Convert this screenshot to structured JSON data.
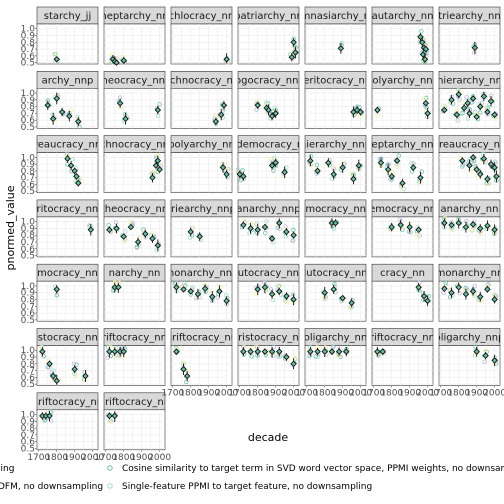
{
  "chart_data": {
    "type": "scatter",
    "xlabel": "decade",
    "ylabel": "pnormed_value",
    "xlim": [
      1690,
      2030
    ],
    "ylim": [
      0.48,
      1.07
    ],
    "xticks": [
      "1700",
      "1800",
      "1900",
      "2000"
    ],
    "yticks": [
      "0.5",
      "0.6",
      "0.7",
      "0.8",
      "0.9",
      "1.0"
    ],
    "colors": {
      "estimate": "#111111",
      "svd": "#67c2a5",
      "ppmi": "#9fd8cb",
      "other_a": "#b9b9dc",
      "other_b": "#f1ef9c",
      "dark_teal": "#3a7d6f"
    },
    "legend": [
      {
        "label": "ling",
        "color": "#b9b9dc"
      },
      {
        "label": "DFM, no downsampling",
        "color": "#f1ef9c"
      },
      {
        "label": "Cosine similarity to target term in SVD word vector space, PPMI weights, no downsampling",
        "color": "#67c2a5"
      },
      {
        "label": "Single-feature PPMI to target feature, no downsampling",
        "color": "#9fd8cb"
      }
    ],
    "panels": [
      {
        "title": "starchy_jj",
        "x": [
          1800
        ],
        "y": [
          0.55
        ]
      },
      {
        "title": "heptarchy_nn",
        "x": [
          1740,
          1750,
          1760,
          1800
        ],
        "y": [
          0.55,
          0.52,
          0.5,
          0.53
        ]
      },
      {
        "title": "ochlocracy_nnp",
        "x": [
          2000
        ],
        "y": [
          0.55
        ]
      },
      {
        "title": "patriarchy_nn",
        "x": [
          2000,
          2010,
          1990
        ],
        "y": [
          0.8,
          0.65,
          0.58
        ]
      },
      {
        "title": "ymnasiarchy_nn",
        "x": [
          1890
        ],
        "y": [
          0.71
        ]
      },
      {
        "title": "autarchy_nn",
        "x": [
          1960,
          1970,
          1980,
          1990,
          1975,
          1985
        ],
        "y": [
          0.88,
          0.8,
          0.72,
          0.7,
          0.62,
          0.55
        ]
      },
      {
        "title": "triearchy_nn",
        "x": [
          1890
        ],
        "y": [
          0.72
        ]
      },
      {
        "title": "archy_nnp",
        "x": [
          1750,
          1780,
          1800,
          1830,
          1870,
          1920
        ],
        "y": [
          0.82,
          0.62,
          0.92,
          0.72,
          0.66,
          0.58
        ]
      },
      {
        "title": "theocracy_nnp",
        "x": [
          1780,
          1810,
          1990
        ],
        "y": [
          0.85,
          0.62,
          0.75
        ]
      },
      {
        "title": "echnocracy_nn",
        "x": [
          1970,
          1940,
          1985
        ],
        "y": [
          0.68,
          0.58,
          0.82
        ]
      },
      {
        "title": "logocracy_nnp",
        "x": [
          1800,
          1850,
          1860,
          1900,
          1880
        ],
        "y": [
          0.82,
          0.78,
          0.75,
          0.7,
          0.66
        ]
      },
      {
        "title": "meritocracy_nnp",
        "x": [
          1960,
          1980,
          2000
        ],
        "y": [
          0.72,
          0.75,
          0.72
        ]
      },
      {
        "title": "polyarchy_nnp",
        "x": [
          1720,
          1990,
          2000
        ],
        "y": [
          0.75,
          0.85,
          0.7
        ]
      },
      {
        "title": "hierarchy_nn",
        "x": [
          1720,
          1760,
          1790,
          1800,
          1830,
          1850,
          1860,
          1880,
          1900,
          1920,
          1940,
          1960,
          1980,
          2000
        ],
        "y": [
          0.75,
          0.9,
          0.68,
          0.98,
          0.78,
          0.85,
          0.7,
          0.92,
          0.65,
          0.8,
          0.95,
          0.72,
          0.88,
          0.68
        ]
      },
      {
        "title": "ureaucracy_nnp",
        "x": [
          1860,
          1880,
          1900,
          1910,
          1920
        ],
        "y": [
          0.98,
          0.88,
          0.8,
          0.72,
          0.62
        ]
      },
      {
        "title": "echnocracy_nnp",
        "x": [
          1960,
          1980,
          1990,
          2000
        ],
        "y": [
          0.7,
          0.88,
          0.95,
          0.82
        ]
      },
      {
        "title": "polyarchy_nn",
        "x": [
          1980,
          2000
        ],
        "y": [
          0.85,
          0.75
        ]
      },
      {
        "title": "aldemocracy_nn",
        "x": [
          1700,
          1720,
          1880,
          1900,
          1950
        ],
        "y": [
          0.75,
          0.72,
          0.88,
          0.92,
          0.78
        ]
      },
      {
        "title": "hierarchy_nnp",
        "x": [
          1720,
          1760,
          1820,
          1850,
          1900,
          1960,
          1990
        ],
        "y": [
          0.95,
          0.8,
          0.92,
          0.75,
          0.85,
          0.68,
          0.88
        ]
      },
      {
        "title": "heptarchy_nnp",
        "x": [
          1740,
          1780,
          1800,
          1830,
          1860,
          1920,
          1960
        ],
        "y": [
          0.92,
          0.82,
          0.72,
          0.95,
          0.62,
          0.85,
          0.7
        ]
      },
      {
        "title": "ureaucracy_nn",
        "x": [
          1820,
          1860,
          1880,
          1900,
          1920,
          1940,
          1960,
          1980,
          2000,
          2010
        ],
        "y": [
          0.95,
          0.88,
          1.0,
          0.82,
          0.75,
          0.98,
          0.68,
          0.9,
          0.85,
          0.72
        ]
      },
      {
        "title": "eritocracy_nnp",
        "x": [
          1990
        ],
        "y": [
          0.88
        ]
      },
      {
        "title": "theocracy_nn",
        "x": [
          1720,
          1760,
          1800,
          1840,
          1880,
          1920,
          1960,
          1990
        ],
        "y": [
          0.88,
          0.9,
          0.78,
          0.92,
          0.7,
          0.82,
          0.75,
          0.65
        ]
      },
      {
        "title": "triearchy_nnp",
        "x": [
          1800,
          1850
        ],
        "y": [
          0.85,
          0.78
        ]
      },
      {
        "title": "anarchy_nnp",
        "x": [
          1720,
          1760,
          1800,
          1840,
          1880,
          1920,
          1960,
          2000
        ],
        "y": [
          0.95,
          0.9,
          0.88,
          0.92,
          0.75,
          0.98,
          0.85,
          0.8
        ]
      },
      {
        "title": "timocracy_nnp",
        "x": [
          1840,
          1860
        ],
        "y": [
          0.98,
          0.98
        ]
      },
      {
        "title": "emocracy_nn",
        "x": [
          1800,
          1850,
          1900,
          1950
        ],
        "y": [
          0.92,
          0.95,
          0.92,
          0.88
        ]
      },
      {
        "title": "anarchy_nn",
        "x": [
          1720,
          1760,
          1800,
          1840,
          1880,
          1920,
          1960,
          2000
        ],
        "y": [
          0.98,
          0.95,
          0.98,
          0.92,
          0.96,
          0.9,
          0.94,
          0.88
        ]
      },
      {
        "title": "mocracy_nn",
        "x": [
          1800
        ],
        "y": [
          0.95
        ]
      },
      {
        "title": "narchy_nn",
        "x": [
          1750,
          1770
        ],
        "y": [
          0.98,
          0.98
        ]
      },
      {
        "title": "monarchy_nnp",
        "x": [
          1720,
          1760,
          1800,
          1840,
          1880,
          1920,
          1960,
          2000
        ],
        "y": [
          0.98,
          0.95,
          0.92,
          0.88,
          0.96,
          0.84,
          0.92,
          0.78
        ]
      },
      {
        "title": "autocracy_nnp",
        "x": [
          1800,
          1840,
          1880,
          1920,
          1960,
          2000
        ],
        "y": [
          0.95,
          0.98,
          0.88,
          0.92,
          0.85,
          0.8
        ]
      },
      {
        "title": "plutocracy_nnp",
        "x": [
          1800,
          1850,
          1900,
          1950
        ],
        "y": [
          0.9,
          0.95,
          0.82,
          0.75
        ]
      },
      {
        "title": "cracy_nn",
        "x": [
          1950,
          1980,
          2000
        ],
        "y": [
          0.98,
          0.85,
          0.78
        ]
      },
      {
        "title": "monarchy_nn",
        "x": [
          1720,
          1760,
          1800,
          1840,
          1880,
          1920,
          1960,
          2000
        ],
        "y": [
          0.96,
          0.9,
          0.98,
          0.88,
          0.92,
          0.84,
          0.95,
          0.8
        ]
      },
      {
        "title": "ristocracy_nnp",
        "x": [
          1720,
          1760,
          1780,
          1800,
          1900,
          1960
        ],
        "y": [
          0.98,
          0.8,
          0.62,
          0.55,
          0.72,
          0.62
        ]
      },
      {
        "title": "ariftocracy_nnp",
        "x": [
          1720,
          1750,
          1780,
          1800
        ],
        "y": [
          0.98,
          0.98,
          0.98,
          0.98
        ]
      },
      {
        "title": "ariftocracy_nn",
        "x": [
          1720,
          1760,
          1780
        ],
        "y": [
          0.98,
          0.72,
          0.62
        ]
      },
      {
        "title": "aristocracy_nn",
        "x": [
          1720,
          1760,
          1800,
          1840,
          1880,
          1920,
          1960,
          2000
        ],
        "y": [
          0.98,
          0.98,
          0.98,
          0.98,
          0.98,
          0.98,
          0.9,
          0.8
        ]
      },
      {
        "title": "oligarchy_nn",
        "x": [
          1720,
          1760,
          1800,
          1840,
          1880,
          1920
        ],
        "y": [
          0.98,
          0.98,
          0.98,
          0.98,
          0.98,
          0.98
        ]
      },
      {
        "title": "ariftocracy_nnp",
        "x": [
          1720,
          1750
        ],
        "y": [
          0.98,
          0.98
        ]
      },
      {
        "title": "oligarchy_nnp",
        "x": [
          1900,
          1950,
          2000
        ],
        "y": [
          0.98,
          0.92,
          0.85
        ]
      },
      {
        "title": "ariftocracy_nn",
        "x": [
          1720,
          1740,
          1760
        ],
        "y": [
          0.98,
          0.98,
          0.98
        ]
      },
      {
        "title": "ariftocracy_nn",
        "x": [
          1720,
          1750
        ],
        "y": [
          0.98,
          0.98
        ]
      }
    ]
  }
}
